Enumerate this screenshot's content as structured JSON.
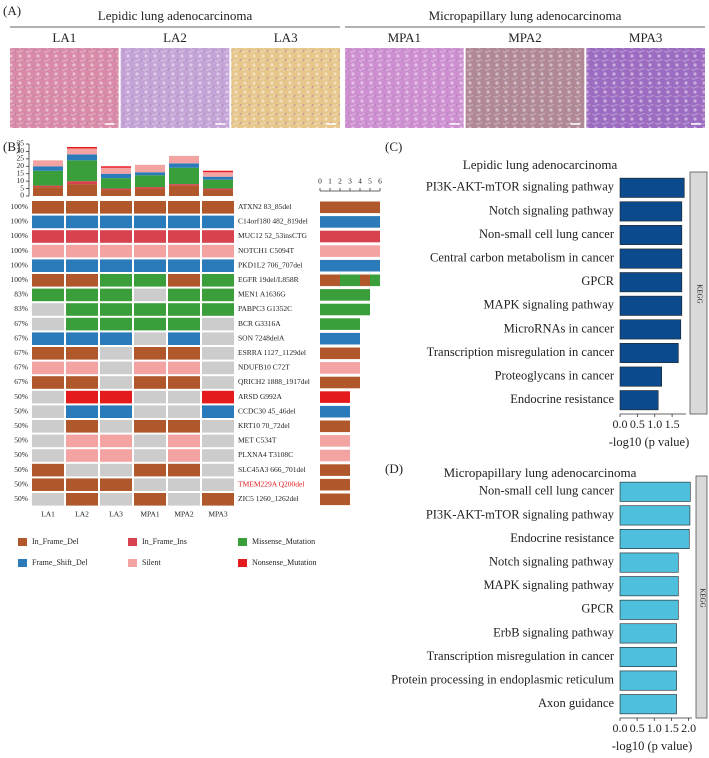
{
  "panel_labels": [
    "(A)",
    "(B)",
    "(C)",
    "(D)"
  ],
  "panel_a": {
    "groups": [
      {
        "title": "Lepidic lung adenocarcinoma",
        "samples": [
          "LA1",
          "LA2",
          "LA3"
        ]
      },
      {
        "title": "Micropapillary lung adenocarcinoma",
        "samples": [
          "MPA1",
          "MPA2",
          "MPA3"
        ]
      }
    ]
  },
  "chart_data": [
    {
      "type": "oncoprint",
      "samples": [
        "LA1",
        "LA2",
        "LA3",
        "MPA1",
        "MPA2",
        "MPA3"
      ],
      "empty_color": "#cccccc",
      "mutation_types": [
        {
          "name": "In_Frame_Del",
          "color": "#b0582b",
          "counts": [
            6,
            8,
            4,
            5,
            7,
            4
          ]
        },
        {
          "name": "In_Frame_Ins",
          "color": "#d8424f",
          "counts": [
            1,
            2,
            1,
            1,
            1,
            1
          ]
        },
        {
          "name": "Missense_Mutation",
          "color": "#3a9e3a",
          "counts": [
            10,
            14,
            7,
            8,
            11,
            6
          ]
        },
        {
          "name": "Frame_Shift_Del",
          "color": "#2b7bba",
          "counts": [
            3,
            4,
            3,
            2,
            3,
            2
          ]
        },
        {
          "name": "Silent",
          "color": "#f4a3a3",
          "counts": [
            4,
            4,
            4,
            5,
            5,
            3
          ]
        },
        {
          "name": "Nonsense_Mutation",
          "color": "#e41a1c",
          "counts": [
            0,
            1,
            1,
            0,
            0,
            1
          ]
        }
      ],
      "ylim": [
        0,
        35
      ],
      "yticks": [
        0,
        5,
        10,
        15,
        20,
        25,
        30,
        35
      ],
      "xlim": [
        0,
        6
      ],
      "xticks": [
        0,
        1,
        2,
        3,
        4,
        5,
        6
      ],
      "rows": [
        {
          "percent": "100%",
          "label": "ATXN2 83_85del",
          "cells": [
            0,
            0,
            0,
            0,
            0,
            0
          ]
        },
        {
          "percent": "100%",
          "label": "C14orf180 482_819del",
          "cells": [
            3,
            3,
            3,
            3,
            3,
            3
          ]
        },
        {
          "percent": "100%",
          "label": "MUC12 52_53insCTG",
          "cells": [
            1,
            1,
            1,
            1,
            1,
            1
          ]
        },
        {
          "percent": "100%",
          "label": "NOTCH1 C5094T",
          "cells": [
            4,
            4,
            4,
            4,
            4,
            4
          ]
        },
        {
          "percent": "100%",
          "label": "PKD1L2 706_707del",
          "cells": [
            3,
            3,
            3,
            3,
            3,
            3
          ]
        },
        {
          "percent": "100%",
          "label": "EGFR 19del/L858R",
          "cells": [
            0,
            0,
            2,
            2,
            0,
            2
          ]
        },
        {
          "percent": "83%",
          "label": "MEN1 A1636G",
          "cells": [
            2,
            2,
            2,
            null,
            2,
            2
          ]
        },
        {
          "percent": "83%",
          "label": "PABPC3 G1352C",
          "cells": [
            null,
            2,
            2,
            2,
            2,
            2
          ]
        },
        {
          "percent": "67%",
          "label": "BCR G3316A",
          "cells": [
            null,
            2,
            2,
            2,
            2,
            null
          ]
        },
        {
          "percent": "67%",
          "label": "SON 7248delA",
          "cells": [
            3,
            3,
            3,
            null,
            3,
            null
          ]
        },
        {
          "percent": "67%",
          "label": "ESRRA 1127_1129del",
          "cells": [
            0,
            0,
            null,
            0,
            0,
            null
          ]
        },
        {
          "percent": "67%",
          "label": "NDUFB10 C72T",
          "cells": [
            4,
            4,
            null,
            4,
            4,
            null
          ]
        },
        {
          "percent": "67%",
          "label": "QRICH2 1888_1917del",
          "cells": [
            0,
            0,
            null,
            0,
            0,
            null
          ]
        },
        {
          "percent": "50%",
          "label": "ARSD G992A",
          "cells": [
            null,
            5,
            5,
            null,
            null,
            5
          ]
        },
        {
          "percent": "50%",
          "label": "CCDC30 45_46del",
          "cells": [
            null,
            3,
            3,
            null,
            null,
            3
          ]
        },
        {
          "percent": "50%",
          "label": "KRT10 70_72del",
          "cells": [
            null,
            0,
            null,
            0,
            0,
            null
          ]
        },
        {
          "percent": "50%",
          "label": "MET C534T",
          "cells": [
            null,
            4,
            4,
            null,
            4,
            null
          ]
        },
        {
          "percent": "50%",
          "label": "PLXNA4 T3108C",
          "cells": [
            null,
            4,
            4,
            null,
            4,
            null
          ]
        },
        {
          "percent": "50%",
          "label": "SLC45A3 666_701del",
          "cells": [
            0,
            null,
            null,
            0,
            0,
            null
          ]
        },
        {
          "percent": "50%",
          "label": "TMEM229A Q200del",
          "cells": [
            0,
            0,
            0,
            null,
            null,
            null
          ],
          "label_color": "#e41a1c"
        },
        {
          "percent": "50%",
          "label": "ZIC5 1260_1262del",
          "cells": [
            null,
            0,
            null,
            0,
            null,
            0
          ]
        }
      ]
    },
    {
      "type": "barh",
      "title": "Lepidic lung adenocarcinoma",
      "categories": [
        "PI3K-AKT-mTOR signaling pathway",
        "Notch signaling pathway",
        "Non-small cell lung cancer",
        "Central carbon metabolism in cancer",
        "GPCR",
        "MAPK signaling pathway",
        "MicroRNAs in cancer",
        "Transcription misregulation in cancer",
        "Proteoglycans in cancer",
        "Endocrine resistance"
      ],
      "values": [
        1.85,
        1.78,
        1.78,
        1.78,
        1.78,
        1.78,
        1.75,
        1.68,
        1.2,
        1.1
      ],
      "color": "#0b4a8c",
      "xlim": [
        0,
        1.9
      ],
      "xticks": [
        {
          "value": 0,
          "label": "0.0"
        },
        {
          "value": 0.5,
          "label": "0.5"
        },
        {
          "value": 1,
          "label": "1.0"
        },
        {
          "value": 1.5,
          "label": "1.5"
        }
      ],
      "xlabel": "-log10 (p value)",
      "facet_label": "KEGG"
    },
    {
      "type": "barh",
      "title": "Micropapillary lung adenocarcinoma",
      "categories": [
        "Non-small cell lung cancer",
        "PI3K-AKT-mTOR signaling pathway",
        "Endocrine resistance",
        "Notch signaling pathway",
        "MAPK signaling pathway",
        "GPCR",
        "ErbB signaling pathway",
        "Transcription misregulation in cancer",
        "Protein processing in endoplasmic reticulum",
        "Axon guidance"
      ],
      "values": [
        2.05,
        2.04,
        2.02,
        1.7,
        1.7,
        1.7,
        1.65,
        1.65,
        1.65,
        1.65
      ],
      "color": "#4ebfdc",
      "xlim": [
        0,
        2.1
      ],
      "xticks": [
        {
          "value": 0,
          "label": "0.0"
        },
        {
          "value": 0.5,
          "label": "0.5"
        },
        {
          "value": 1,
          "label": "1.0"
        },
        {
          "value": 1.5,
          "label": "1.5"
        },
        {
          "value": 2,
          "label": "2.0"
        }
      ],
      "xlabel": "-log10 (p value)",
      "facet_label": "KEGG"
    }
  ]
}
